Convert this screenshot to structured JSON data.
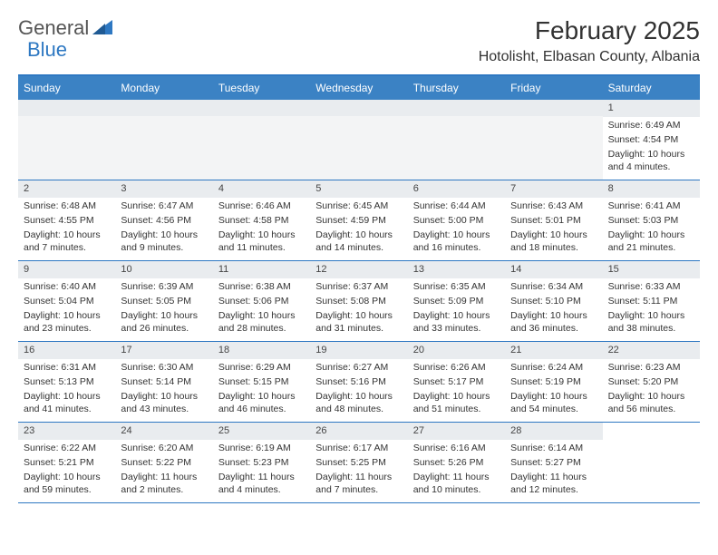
{
  "logo": {
    "text1": "General",
    "text2": "Blue"
  },
  "title": {
    "month": "February 2025",
    "location": "Hotolisht, Elbasan County, Albania"
  },
  "colors": {
    "headerBg": "#3b82c4",
    "headerBorder": "#2e78c2",
    "dayBg": "#e9ecef"
  },
  "weekdays": [
    "Sunday",
    "Monday",
    "Tuesday",
    "Wednesday",
    "Thursday",
    "Friday",
    "Saturday"
  ],
  "rows": [
    [
      null,
      null,
      null,
      null,
      null,
      null,
      {
        "n": "1",
        "sunrise": "Sunrise: 6:49 AM",
        "sunset": "Sunset: 4:54 PM",
        "daylight": "Daylight: 10 hours and 4 minutes."
      }
    ],
    [
      {
        "n": "2",
        "sunrise": "Sunrise: 6:48 AM",
        "sunset": "Sunset: 4:55 PM",
        "daylight": "Daylight: 10 hours and 7 minutes."
      },
      {
        "n": "3",
        "sunrise": "Sunrise: 6:47 AM",
        "sunset": "Sunset: 4:56 PM",
        "daylight": "Daylight: 10 hours and 9 minutes."
      },
      {
        "n": "4",
        "sunrise": "Sunrise: 6:46 AM",
        "sunset": "Sunset: 4:58 PM",
        "daylight": "Daylight: 10 hours and 11 minutes."
      },
      {
        "n": "5",
        "sunrise": "Sunrise: 6:45 AM",
        "sunset": "Sunset: 4:59 PM",
        "daylight": "Daylight: 10 hours and 14 minutes."
      },
      {
        "n": "6",
        "sunrise": "Sunrise: 6:44 AM",
        "sunset": "Sunset: 5:00 PM",
        "daylight": "Daylight: 10 hours and 16 minutes."
      },
      {
        "n": "7",
        "sunrise": "Sunrise: 6:43 AM",
        "sunset": "Sunset: 5:01 PM",
        "daylight": "Daylight: 10 hours and 18 minutes."
      },
      {
        "n": "8",
        "sunrise": "Sunrise: 6:41 AM",
        "sunset": "Sunset: 5:03 PM",
        "daylight": "Daylight: 10 hours and 21 minutes."
      }
    ],
    [
      {
        "n": "9",
        "sunrise": "Sunrise: 6:40 AM",
        "sunset": "Sunset: 5:04 PM",
        "daylight": "Daylight: 10 hours and 23 minutes."
      },
      {
        "n": "10",
        "sunrise": "Sunrise: 6:39 AM",
        "sunset": "Sunset: 5:05 PM",
        "daylight": "Daylight: 10 hours and 26 minutes."
      },
      {
        "n": "11",
        "sunrise": "Sunrise: 6:38 AM",
        "sunset": "Sunset: 5:06 PM",
        "daylight": "Daylight: 10 hours and 28 minutes."
      },
      {
        "n": "12",
        "sunrise": "Sunrise: 6:37 AM",
        "sunset": "Sunset: 5:08 PM",
        "daylight": "Daylight: 10 hours and 31 minutes."
      },
      {
        "n": "13",
        "sunrise": "Sunrise: 6:35 AM",
        "sunset": "Sunset: 5:09 PM",
        "daylight": "Daylight: 10 hours and 33 minutes."
      },
      {
        "n": "14",
        "sunrise": "Sunrise: 6:34 AM",
        "sunset": "Sunset: 5:10 PM",
        "daylight": "Daylight: 10 hours and 36 minutes."
      },
      {
        "n": "15",
        "sunrise": "Sunrise: 6:33 AM",
        "sunset": "Sunset: 5:11 PM",
        "daylight": "Daylight: 10 hours and 38 minutes."
      }
    ],
    [
      {
        "n": "16",
        "sunrise": "Sunrise: 6:31 AM",
        "sunset": "Sunset: 5:13 PM",
        "daylight": "Daylight: 10 hours and 41 minutes."
      },
      {
        "n": "17",
        "sunrise": "Sunrise: 6:30 AM",
        "sunset": "Sunset: 5:14 PM",
        "daylight": "Daylight: 10 hours and 43 minutes."
      },
      {
        "n": "18",
        "sunrise": "Sunrise: 6:29 AM",
        "sunset": "Sunset: 5:15 PM",
        "daylight": "Daylight: 10 hours and 46 minutes."
      },
      {
        "n": "19",
        "sunrise": "Sunrise: 6:27 AM",
        "sunset": "Sunset: 5:16 PM",
        "daylight": "Daylight: 10 hours and 48 minutes."
      },
      {
        "n": "20",
        "sunrise": "Sunrise: 6:26 AM",
        "sunset": "Sunset: 5:17 PM",
        "daylight": "Daylight: 10 hours and 51 minutes."
      },
      {
        "n": "21",
        "sunrise": "Sunrise: 6:24 AM",
        "sunset": "Sunset: 5:19 PM",
        "daylight": "Daylight: 10 hours and 54 minutes."
      },
      {
        "n": "22",
        "sunrise": "Sunrise: 6:23 AM",
        "sunset": "Sunset: 5:20 PM",
        "daylight": "Daylight: 10 hours and 56 minutes."
      }
    ],
    [
      {
        "n": "23",
        "sunrise": "Sunrise: 6:22 AM",
        "sunset": "Sunset: 5:21 PM",
        "daylight": "Daylight: 10 hours and 59 minutes."
      },
      {
        "n": "24",
        "sunrise": "Sunrise: 6:20 AM",
        "sunset": "Sunset: 5:22 PM",
        "daylight": "Daylight: 11 hours and 2 minutes."
      },
      {
        "n": "25",
        "sunrise": "Sunrise: 6:19 AM",
        "sunset": "Sunset: 5:23 PM",
        "daylight": "Daylight: 11 hours and 4 minutes."
      },
      {
        "n": "26",
        "sunrise": "Sunrise: 6:17 AM",
        "sunset": "Sunset: 5:25 PM",
        "daylight": "Daylight: 11 hours and 7 minutes."
      },
      {
        "n": "27",
        "sunrise": "Sunrise: 6:16 AM",
        "sunset": "Sunset: 5:26 PM",
        "daylight": "Daylight: 11 hours and 10 minutes."
      },
      {
        "n": "28",
        "sunrise": "Sunrise: 6:14 AM",
        "sunset": "Sunset: 5:27 PM",
        "daylight": "Daylight: 11 hours and 12 minutes."
      },
      null
    ]
  ]
}
